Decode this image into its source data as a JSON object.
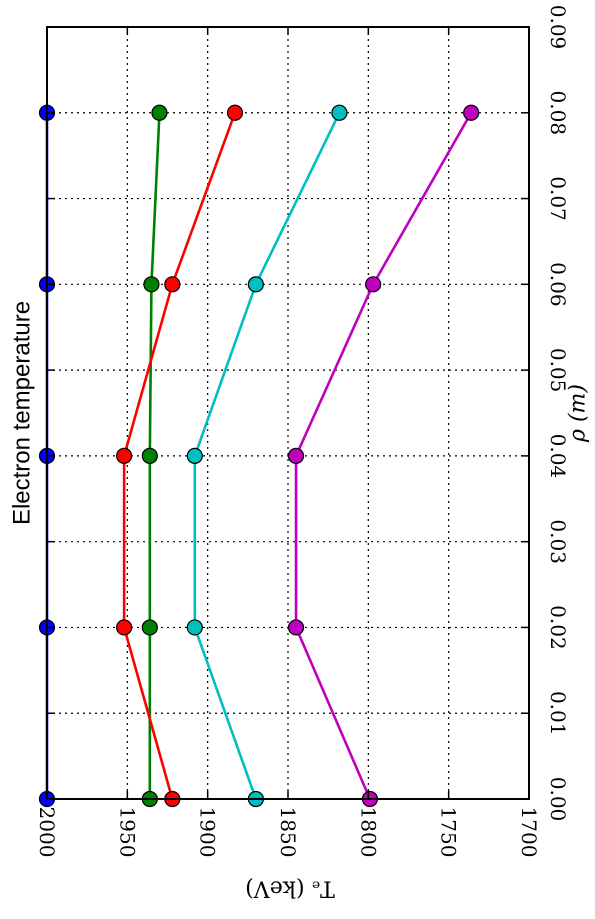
{
  "chart_data": {
    "type": "line",
    "title": "Electron temperature",
    "xlabel": "ρ (m)",
    "ylabel": "Tₑ (keV)",
    "orientation": "rotated 90° clockwise",
    "xlim": [
      0.0,
      0.09
    ],
    "ylim": [
      1700,
      2000
    ],
    "x_ticks": [
      "0.00",
      "0.01",
      "0.02",
      "0.03",
      "0.04",
      "0.05",
      "0.06",
      "0.07",
      "0.08",
      "0.09"
    ],
    "y_ticks": [
      "2000",
      "1950",
      "1900",
      "1850",
      "1800",
      "1750",
      "1700"
    ],
    "grid": true,
    "x": [
      0.0,
      0.02,
      0.04,
      0.06,
      0.08
    ],
    "series": [
      {
        "color": "#0000ff",
        "values": [
          2000,
          2000,
          2000,
          2000,
          2000
        ]
      },
      {
        "color": "#008000",
        "values": [
          1936,
          1936,
          1936,
          1935,
          1930
        ]
      },
      {
        "color": "#ff0000",
        "values": [
          1922,
          1952,
          1952,
          1922,
          1883
        ]
      },
      {
        "color": "#00bfbf",
        "values": [
          1870,
          1908,
          1908,
          1870,
          1818
        ]
      },
      {
        "color": "#bf00bf",
        "values": [
          1799,
          1845,
          1845,
          1797,
          1736
        ]
      }
    ]
  }
}
